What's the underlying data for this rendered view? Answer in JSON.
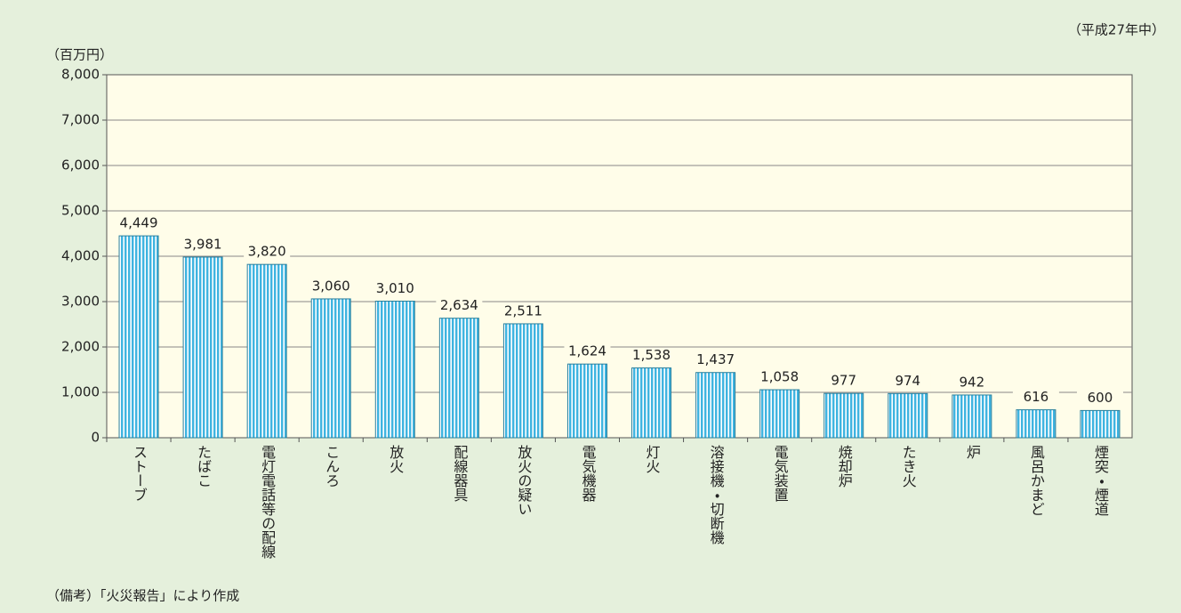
{
  "chart_data": {
    "type": "bar",
    "note_top": "（平成27年中）",
    "y_axis_label": "（百万円）",
    "source": "（備考）「火災報告」により作成",
    "categories": [
      "ストーブ",
      "たばこ",
      "電灯電話等の配線",
      "こんろ",
      "放火",
      "配線器具",
      "放火の疑い",
      "電気機器",
      "灯火",
      "溶接機・切断機",
      "電気装置",
      "焼却炉",
      "たき火",
      "炉",
      "風呂かまど",
      "煙突・煙道"
    ],
    "values": [
      4449,
      3981,
      3820,
      3060,
      3010,
      2634,
      2511,
      1624,
      1538,
      1437,
      1058,
      977,
      974,
      942,
      616,
      600
    ],
    "value_labels": [
      "4,449",
      "3,981",
      "3,820",
      "3,060",
      "3,010",
      "2,634",
      "2,511",
      "1,624",
      "1,538",
      "1,437",
      "1,058",
      "977",
      "974",
      "942",
      "616",
      "600"
    ],
    "color": "#3fb4e0",
    "ylim": [
      0,
      8000
    ],
    "yticks": [
      0,
      {
        "value": 1000,
        "label": "1,000"
      },
      {
        "value": 2000,
        "label": "2,000"
      },
      {
        "value": 3000,
        "label": "3,000"
      },
      {
        "value": 4000,
        "label": "4,000"
      },
      {
        "value": 5000,
        "label": "5,000"
      },
      {
        "value": 6000,
        "label": "6,000"
      },
      {
        "value": 7000,
        "label": "7,000"
      },
      {
        "value": 8000,
        "label": "8,000"
      }
    ],
    "grid": true
  }
}
